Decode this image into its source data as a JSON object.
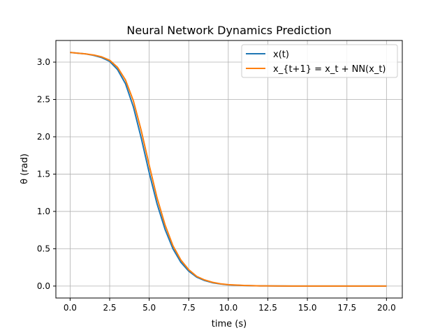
{
  "chart_data": {
    "type": "line",
    "title": "Neural Network Dynamics Prediction",
    "xlabel": "time (s)",
    "ylabel": "θ (rad)",
    "xlim": [
      -0.9,
      21.0
    ],
    "ylim": [
      -0.16,
      3.29
    ],
    "xticks": [
      0.0,
      2.5,
      5.0,
      7.5,
      10.0,
      12.5,
      15.0,
      17.5,
      20.0
    ],
    "xtick_labels": [
      "0.0",
      "2.5",
      "5.0",
      "7.5",
      "10.0",
      "12.5",
      "15.0",
      "17.5",
      "20.0"
    ],
    "yticks": [
      0.0,
      0.5,
      1.0,
      1.5,
      2.0,
      2.5,
      3.0
    ],
    "ytick_labels": [
      "0.0",
      "0.5",
      "1.0",
      "1.5",
      "2.0",
      "2.5",
      "3.0"
    ],
    "grid": true,
    "legend_position": "upper right",
    "x": [
      0,
      0.5,
      1.0,
      1.5,
      2.0,
      2.5,
      3.0,
      3.5,
      4.0,
      4.5,
      5.0,
      5.5,
      6.0,
      6.5,
      7.0,
      7.5,
      8.0,
      8.5,
      9.0,
      9.5,
      10.0,
      11.0,
      12.0,
      13.0,
      14.0,
      15.0,
      16.0,
      17.0,
      18.0,
      19.0,
      20.0
    ],
    "series": [
      {
        "name": "x(t)",
        "color": "#1f77b4",
        "values": [
          3.13,
          3.12,
          3.11,
          3.09,
          3.06,
          3.01,
          2.9,
          2.71,
          2.4,
          1.98,
          1.52,
          1.1,
          0.76,
          0.5,
          0.32,
          0.2,
          0.12,
          0.075,
          0.045,
          0.028,
          0.017,
          0.007,
          0.003,
          0.001,
          0.0,
          0.0,
          0.0,
          0.0,
          0.0,
          0.0,
          0.0
        ]
      },
      {
        "name": "x_{t+1} = x_t + NN(x_t)",
        "color": "#ff7f0e",
        "values": [
          3.13,
          3.12,
          3.11,
          3.095,
          3.07,
          3.025,
          2.93,
          2.76,
          2.48,
          2.08,
          1.62,
          1.18,
          0.82,
          0.54,
          0.35,
          0.22,
          0.13,
          0.082,
          0.05,
          0.031,
          0.019,
          0.008,
          0.003,
          0.001,
          0.0,
          0.0,
          0.0,
          0.0,
          0.0,
          0.0,
          0.0
        ]
      }
    ]
  }
}
